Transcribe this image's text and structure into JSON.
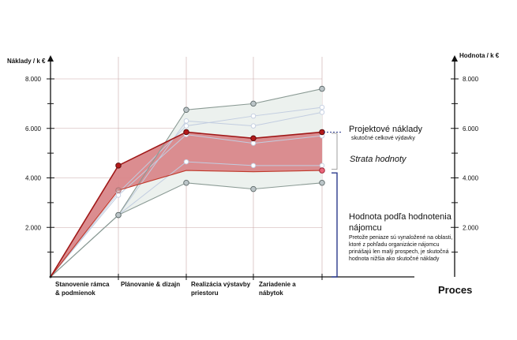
{
  "chart_data": {
    "type": "line",
    "xlabel": "Proces",
    "ylabel_left": "Náklady / k €",
    "ylabel_right": "Hodnota / k €",
    "ylim": [
      0,
      9000
    ],
    "yticks": [
      "2.000",
      "4.000",
      "6.000",
      "8.000"
    ],
    "ytick_values": [
      2000,
      4000,
      6000,
      8000
    ],
    "categories": [
      "",
      "Stanovenie rámca & podmienok",
      "Plánovanie & dizajn",
      "Realizácia výstavby priestoru",
      "Zariadenie a nábytok"
    ],
    "category_labels": [
      [
        "Stanovenie rámca",
        "& podmienok"
      ],
      [
        "Plánovanie & dizajn"
      ],
      [
        "Realizácia výstavby",
        "priestoru"
      ],
      [
        "Zariadenie a",
        "nábytok"
      ]
    ],
    "series": [
      {
        "role": "cost",
        "values": [
          0,
          4500,
          5850,
          5600,
          5850
        ],
        "color": "#a01818"
      },
      {
        "role": "value",
        "values": [
          0,
          3500,
          4300,
          4250,
          4300
        ],
        "color": "#c0392b"
      },
      {
        "role": "cost-upper",
        "values": [
          0,
          2500,
          6750,
          7000,
          7600
        ],
        "color": "#8a9a94"
      },
      {
        "role": "value-lower",
        "values": [
          0,
          2500,
          3800,
          3550,
          3800
        ],
        "color": "#8a9a94"
      },
      {
        "role": "faint",
        "values": [
          0,
          2500,
          6300,
          6100,
          6650
        ],
        "color": "#c2cde0"
      },
      {
        "role": "faint",
        "values": [
          0,
          3400,
          6100,
          6500,
          6850
        ],
        "color": "#c2cde0"
      },
      {
        "role": "faint",
        "values": [
          0,
          3300,
          5750,
          5400,
          5700
        ],
        "color": "#c2cde0"
      },
      {
        "role": "faint",
        "values": [
          0,
          2500,
          4650,
          4500,
          4500
        ],
        "color": "#c2cde0"
      }
    ],
    "band_fill": "#d9878a",
    "envelope_fill": "#ecf1ee"
  },
  "annotations": {
    "cost_title": "Projektové náklady",
    "cost_sub": "skutočné celkové výdavky",
    "strata": "Strata hodnoty",
    "value_title": "Hodnota podľa hodnotenia nájomcu",
    "value_desc": "Pretože peniaze sú vynaložené na oblasti, ktoré z pohľadu organizácie nájomcu prinášajú len malý prospech, je skutočná hodnota nižšia ako skutočné náklady"
  }
}
